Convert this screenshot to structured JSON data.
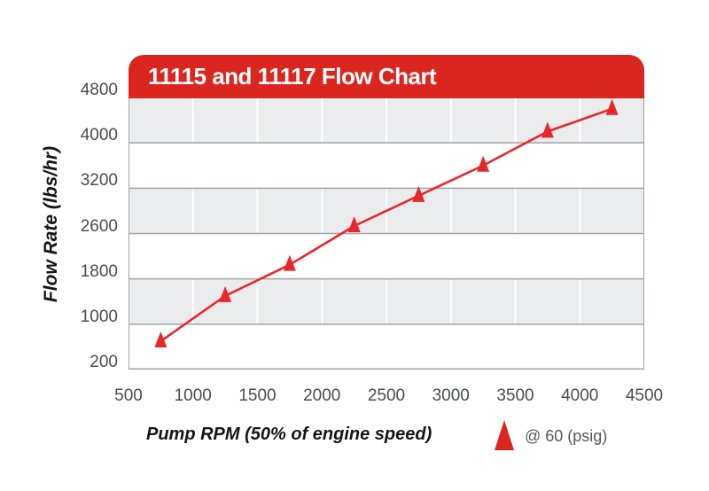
{
  "title": "11115 and 11117 Flow Chart",
  "y_axis": {
    "title": "Flow Rate (lbs/hr)",
    "ticks": [
      200,
      1000,
      1800,
      2600,
      3200,
      4000,
      4800
    ],
    "note": "tick labels evenly spaced on axis even though values are non-uniform"
  },
  "x_axis": {
    "title": "Pump RPM (50% of engine speed)",
    "ticks": [
      500,
      1000,
      1500,
      2000,
      2500,
      3000,
      3500,
      4000,
      4500
    ],
    "min": 500,
    "max": 4500
  },
  "legend": {
    "label": "@ 60 (psig)",
    "marker": "triangle-up",
    "position": "bottom-right"
  },
  "colors": {
    "accent_red": "#db2620",
    "line_red": "#e8272b",
    "stripe_gray": "#ebecee",
    "gridline_gray": "#a2a3a7",
    "vertical_gridline": "#ffffff",
    "tick_label": "#4b4c4f",
    "title_text": "#ffffff"
  },
  "chart_data": {
    "type": "line",
    "title": "11115 and 11117 Flow Chart",
    "xlabel": "Pump RPM (50% of engine speed)",
    "ylabel": "Flow Rate (lbs/hr)",
    "x_ticks": [
      500,
      1000,
      1500,
      2000,
      2500,
      3000,
      3500,
      4000,
      4500
    ],
    "y_ticks": [
      200,
      1000,
      1800,
      2600,
      3200,
      4000,
      4800
    ],
    "xlim": [
      500,
      4500
    ],
    "grid": "horizontal gridlines at each y tick with alternating gray/white bands; white vertical gridlines at each x tick",
    "legend_position": "bottom-right outside plot",
    "series": [
      {
        "name": "@ 60 (psig)",
        "marker": "triangle",
        "color": "#e8272b",
        "x": [
          750,
          1250,
          1750,
          2250,
          2750,
          3250,
          3750,
          4250
        ],
        "y": [
          700,
          1500,
          2050,
          2700,
          3100,
          3600,
          4200,
          4600
        ]
      }
    ]
  }
}
